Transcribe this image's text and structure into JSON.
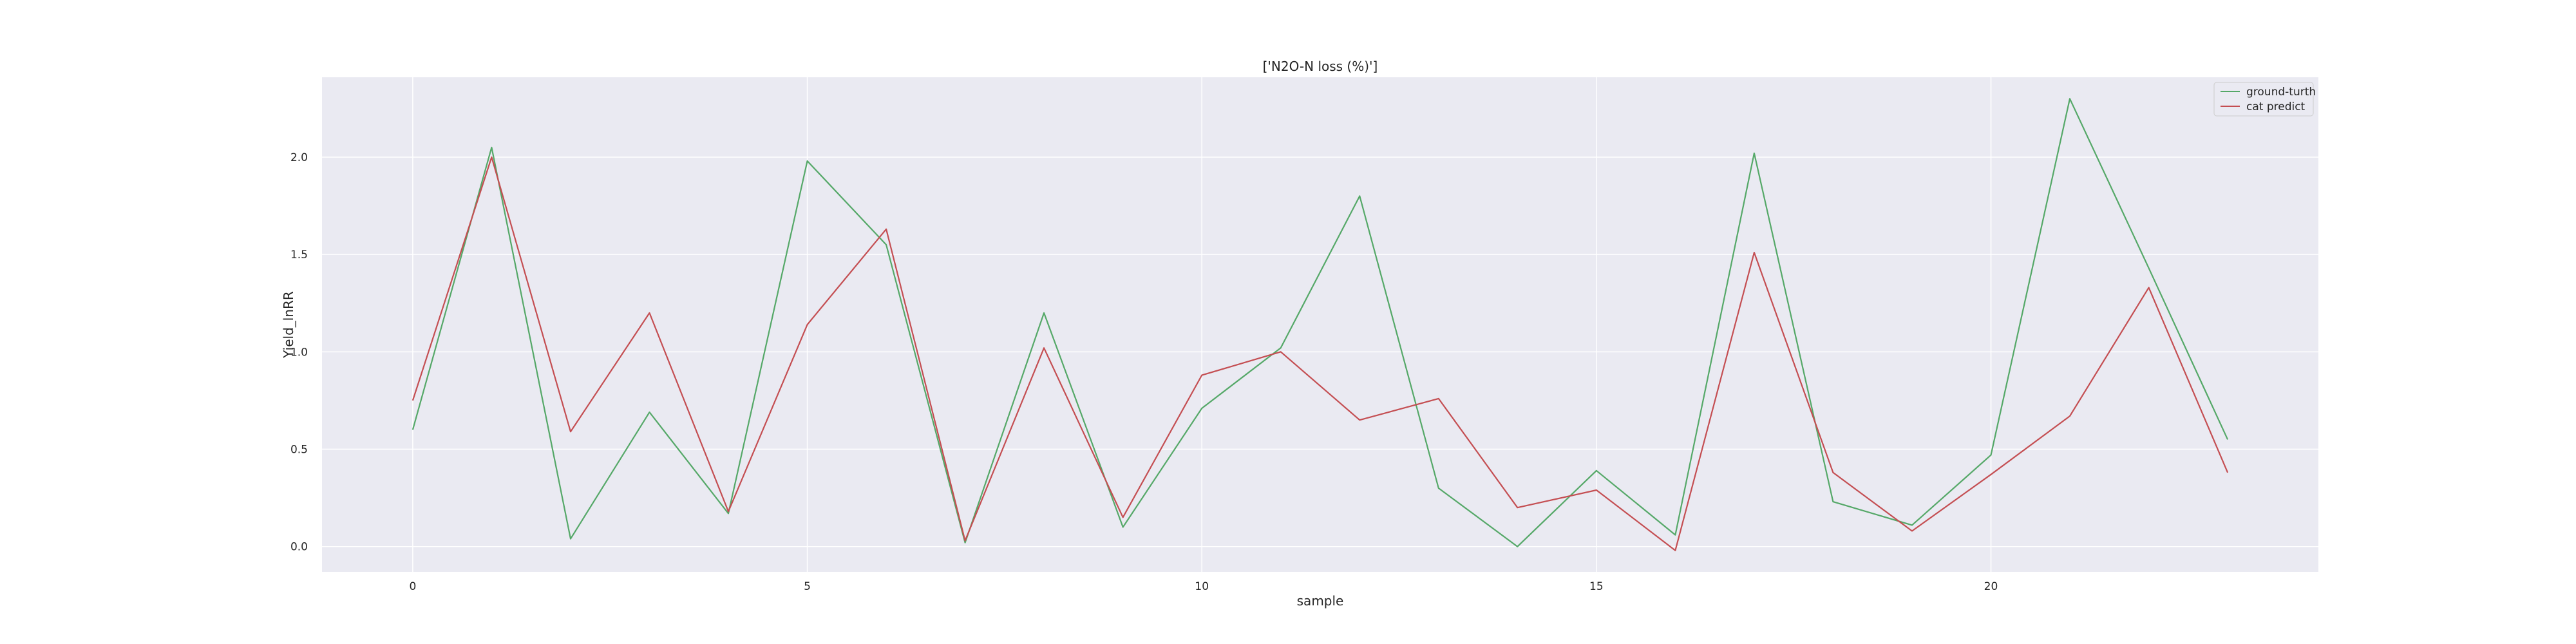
{
  "chart_data": {
    "type": "line",
    "title": "['N2O-N loss (%)']",
    "xlabel": "sample",
    "ylabel": "Yield_lnRR",
    "x": [
      0,
      1,
      2,
      3,
      4,
      5,
      6,
      7,
      8,
      9,
      10,
      11,
      12,
      13,
      14,
      15,
      16,
      17,
      18,
      19,
      20,
      21,
      22,
      23
    ],
    "xlim": [
      -1.15,
      24.15
    ],
    "ylim": [
      -0.13,
      2.41
    ],
    "xticks": [
      0,
      5,
      10,
      15,
      20
    ],
    "yticks": [
      0.0,
      0.5,
      1.0,
      1.5,
      2.0
    ],
    "xtick_labels": [
      "0",
      "5",
      "10",
      "15",
      "20"
    ],
    "ytick_labels": [
      "0.0",
      "0.5",
      "1.0",
      "1.5",
      "2.0"
    ],
    "grid": true,
    "legend_position": "top-right",
    "background_color": "#eaeaf2",
    "series": [
      {
        "name": "ground-turth",
        "color": "#55a868",
        "values": [
          0.6,
          2.05,
          0.04,
          0.69,
          0.17,
          1.98,
          1.55,
          0.02,
          1.2,
          0.1,
          0.71,
          1.02,
          1.8,
          0.3,
          0.0,
          0.39,
          0.06,
          2.02,
          0.23,
          0.11,
          0.47,
          2.3,
          1.43,
          0.55
        ]
      },
      {
        "name": "cat predict",
        "color": "#c44e52",
        "values": [
          0.75,
          2.0,
          0.59,
          1.2,
          0.18,
          1.14,
          1.63,
          0.03,
          1.02,
          0.15,
          0.88,
          1.0,
          0.65,
          0.76,
          0.2,
          0.29,
          -0.02,
          1.51,
          0.38,
          0.08,
          0.37,
          0.67,
          1.33,
          0.38
        ]
      }
    ]
  }
}
